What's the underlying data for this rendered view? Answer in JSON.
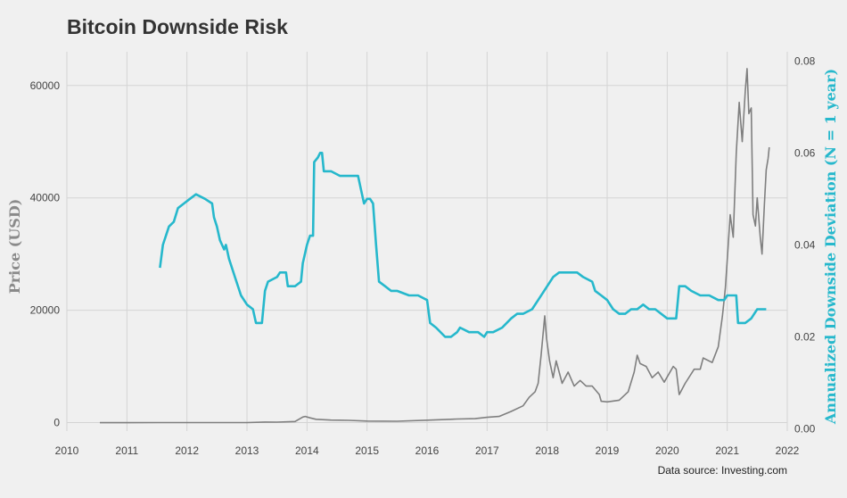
{
  "chart_data": {
    "type": "line",
    "title": "Bitcoin Downside Risk",
    "caption": "Data source: Investing.com",
    "x_axis": {
      "ticks": [
        "2010",
        "2011",
        "2012",
        "2013",
        "2014",
        "2015",
        "2016",
        "2017",
        "2018",
        "2019",
        "2020",
        "2021",
        "2022"
      ],
      "range": [
        2010,
        2022
      ]
    },
    "y_left": {
      "label": "Price (USD)",
      "ticks": [
        "0",
        "20000",
        "40000",
        "60000"
      ],
      "range": [
        -1500,
        66000
      ]
    },
    "y_right": {
      "label": "Annualized Downside Deviation (N = 1 year)",
      "ticks": [
        "0.00",
        "0.02",
        "0.04",
        "0.06",
        "0.08"
      ],
      "range": [
        -0.0005,
        0.082
      ]
    },
    "grid": true,
    "series": [
      {
        "axis": "left",
        "color": "#7f7f7f",
        "points": [
          [
            2010.55,
            0
          ],
          [
            2011.0,
            0
          ],
          [
            2011.5,
            15
          ],
          [
            2012.0,
            6
          ],
          [
            2012.5,
            7
          ],
          [
            2013.0,
            13
          ],
          [
            2013.3,
            100
          ],
          [
            2013.5,
            90
          ],
          [
            2013.8,
            200
          ],
          [
            2013.93,
            1000
          ],
          [
            2013.97,
            1100
          ],
          [
            2014.05,
            850
          ],
          [
            2014.15,
            600
          ],
          [
            2014.4,
            450
          ],
          [
            2014.7,
            400
          ],
          [
            2015.0,
            280
          ],
          [
            2015.5,
            250
          ],
          [
            2016.0,
            430
          ],
          [
            2016.5,
            650
          ],
          [
            2016.8,
            700
          ],
          [
            2017.0,
            950
          ],
          [
            2017.2,
            1100
          ],
          [
            2017.4,
            2000
          ],
          [
            2017.6,
            3000
          ],
          [
            2017.7,
            4500
          ],
          [
            2017.8,
            5500
          ],
          [
            2017.85,
            7000
          ],
          [
            2017.9,
            12000
          ],
          [
            2017.96,
            19000
          ],
          [
            2017.99,
            15000
          ],
          [
            2018.04,
            11000
          ],
          [
            2018.1,
            8000
          ],
          [
            2018.15,
            11000
          ],
          [
            2018.25,
            7000
          ],
          [
            2018.35,
            9000
          ],
          [
            2018.45,
            6500
          ],
          [
            2018.55,
            7500
          ],
          [
            2018.65,
            6500
          ],
          [
            2018.75,
            6500
          ],
          [
            2018.87,
            5000
          ],
          [
            2018.9,
            3800
          ],
          [
            2019.0,
            3700
          ],
          [
            2019.2,
            4000
          ],
          [
            2019.35,
            5500
          ],
          [
            2019.45,
            9000
          ],
          [
            2019.5,
            12000
          ],
          [
            2019.55,
            10500
          ],
          [
            2019.65,
            10000
          ],
          [
            2019.75,
            8000
          ],
          [
            2019.85,
            9000
          ],
          [
            2019.95,
            7200
          ],
          [
            2020.1,
            10000
          ],
          [
            2020.15,
            9500
          ],
          [
            2020.2,
            5000
          ],
          [
            2020.3,
            7000
          ],
          [
            2020.45,
            9500
          ],
          [
            2020.55,
            9500
          ],
          [
            2020.6,
            11500
          ],
          [
            2020.75,
            10700
          ],
          [
            2020.85,
            13500
          ],
          [
            2020.92,
            19000
          ],
          [
            2020.97,
            24000
          ],
          [
            2021.0,
            29000
          ],
          [
            2021.05,
            37000
          ],
          [
            2021.1,
            33000
          ],
          [
            2021.15,
            48000
          ],
          [
            2021.2,
            57000
          ],
          [
            2021.25,
            50000
          ],
          [
            2021.3,
            59000
          ],
          [
            2021.33,
            63000
          ],
          [
            2021.36,
            55000
          ],
          [
            2021.4,
            56000
          ],
          [
            2021.43,
            37000
          ],
          [
            2021.47,
            35000
          ],
          [
            2021.5,
            40000
          ],
          [
            2021.55,
            33000
          ],
          [
            2021.58,
            30000
          ],
          [
            2021.62,
            39000
          ],
          [
            2021.65,
            45000
          ],
          [
            2021.68,
            47000
          ],
          [
            2021.7,
            49000
          ]
        ]
      },
      {
        "axis": "right",
        "color": "#26b8cc",
        "points": [
          [
            2011.55,
            0.035
          ],
          [
            2011.6,
            0.04
          ],
          [
            2011.7,
            0.044
          ],
          [
            2011.78,
            0.045
          ],
          [
            2011.85,
            0.048
          ],
          [
            2011.95,
            0.049
          ],
          [
            2012.05,
            0.05
          ],
          [
            2012.15,
            0.051
          ],
          [
            2012.3,
            0.05
          ],
          [
            2012.42,
            0.049
          ],
          [
            2012.45,
            0.046
          ],
          [
            2012.5,
            0.044
          ],
          [
            2012.55,
            0.041
          ],
          [
            2012.62,
            0.039
          ],
          [
            2012.65,
            0.04
          ],
          [
            2012.7,
            0.037
          ],
          [
            2012.8,
            0.033
          ],
          [
            2012.9,
            0.029
          ],
          [
            2013.0,
            0.027
          ],
          [
            2013.1,
            0.026
          ],
          [
            2013.15,
            0.023
          ],
          [
            2013.25,
            0.023
          ],
          [
            2013.3,
            0.03
          ],
          [
            2013.35,
            0.032
          ],
          [
            2013.5,
            0.033
          ],
          [
            2013.55,
            0.034
          ],
          [
            2013.65,
            0.034
          ],
          [
            2013.68,
            0.031
          ],
          [
            2013.8,
            0.031
          ],
          [
            2013.9,
            0.032
          ],
          [
            2013.93,
            0.036
          ],
          [
            2014.0,
            0.04
          ],
          [
            2014.05,
            0.042
          ],
          [
            2014.1,
            0.042
          ],
          [
            2014.12,
            0.058
          ],
          [
            2014.18,
            0.059
          ],
          [
            2014.22,
            0.06
          ],
          [
            2014.25,
            0.06
          ],
          [
            2014.28,
            0.056
          ],
          [
            2014.4,
            0.056
          ],
          [
            2014.55,
            0.055
          ],
          [
            2014.7,
            0.055
          ],
          [
            2014.85,
            0.055
          ],
          [
            2014.9,
            0.052
          ],
          [
            2014.95,
            0.049
          ],
          [
            2015.0,
            0.05
          ],
          [
            2015.05,
            0.05
          ],
          [
            2015.1,
            0.049
          ],
          [
            2015.15,
            0.04
          ],
          [
            2015.2,
            0.032
          ],
          [
            2015.3,
            0.031
          ],
          [
            2015.4,
            0.03
          ],
          [
            2015.5,
            0.03
          ],
          [
            2015.7,
            0.029
          ],
          [
            2015.85,
            0.029
          ],
          [
            2016.0,
            0.028
          ],
          [
            2016.05,
            0.023
          ],
          [
            2016.15,
            0.022
          ],
          [
            2016.3,
            0.02
          ],
          [
            2016.4,
            0.02
          ],
          [
            2016.5,
            0.021
          ],
          [
            2016.55,
            0.022
          ],
          [
            2016.7,
            0.021
          ],
          [
            2016.85,
            0.021
          ],
          [
            2016.95,
            0.02
          ],
          [
            2017.0,
            0.021
          ],
          [
            2017.1,
            0.021
          ],
          [
            2017.25,
            0.022
          ],
          [
            2017.4,
            0.024
          ],
          [
            2017.5,
            0.025
          ],
          [
            2017.6,
            0.025
          ],
          [
            2017.75,
            0.026
          ],
          [
            2017.85,
            0.028
          ],
          [
            2017.95,
            0.03
          ],
          [
            2018.1,
            0.033
          ],
          [
            2018.2,
            0.034
          ],
          [
            2018.35,
            0.034
          ],
          [
            2018.5,
            0.034
          ],
          [
            2018.6,
            0.033
          ],
          [
            2018.75,
            0.032
          ],
          [
            2018.8,
            0.03
          ],
          [
            2018.9,
            0.029
          ],
          [
            2019.0,
            0.028
          ],
          [
            2019.1,
            0.026
          ],
          [
            2019.2,
            0.025
          ],
          [
            2019.3,
            0.025
          ],
          [
            2019.4,
            0.026
          ],
          [
            2019.5,
            0.026
          ],
          [
            2019.6,
            0.027
          ],
          [
            2019.7,
            0.026
          ],
          [
            2019.8,
            0.026
          ],
          [
            2019.9,
            0.025
          ],
          [
            2020.0,
            0.024
          ],
          [
            2020.1,
            0.024
          ],
          [
            2020.15,
            0.024
          ],
          [
            2020.2,
            0.031
          ],
          [
            2020.3,
            0.031
          ],
          [
            2020.4,
            0.03
          ],
          [
            2020.55,
            0.029
          ],
          [
            2020.7,
            0.029
          ],
          [
            2020.85,
            0.028
          ],
          [
            2020.95,
            0.028
          ],
          [
            2021.0,
            0.029
          ],
          [
            2021.1,
            0.029
          ],
          [
            2021.15,
            0.029
          ],
          [
            2021.18,
            0.023
          ],
          [
            2021.3,
            0.023
          ],
          [
            2021.4,
            0.024
          ],
          [
            2021.45,
            0.025
          ],
          [
            2021.5,
            0.026
          ],
          [
            2021.6,
            0.026
          ],
          [
            2021.65,
            0.026
          ]
        ]
      }
    ]
  }
}
